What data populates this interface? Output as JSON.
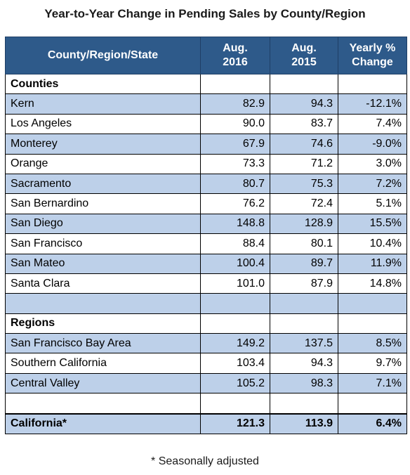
{
  "title": "Year-to-Year Change in Pending Sales by County/Region",
  "footnote": "* Seasonally adjusted",
  "chart_data": {
    "type": "table",
    "title": "Year-to-Year Change in Pending Sales by County/Region",
    "columns": [
      {
        "line1": "County/Region/State",
        "line2": ""
      },
      {
        "line1": "Aug.",
        "line2": "2016"
      },
      {
        "line1": "Aug.",
        "line2": "2015"
      },
      {
        "line1": "Yearly %",
        "line2": "Change"
      }
    ],
    "rows": [
      {
        "kind": "section",
        "label": "Counties",
        "aug2016": "",
        "aug2015": "",
        "change": "",
        "band": false
      },
      {
        "kind": "data",
        "label": "Kern",
        "aug2016": "82.9",
        "aug2015": "94.3",
        "change": "-12.1%",
        "band": true
      },
      {
        "kind": "data",
        "label": "Los Angeles",
        "aug2016": "90.0",
        "aug2015": "83.7",
        "change": "7.4%",
        "band": false
      },
      {
        "kind": "data",
        "label": "Monterey",
        "aug2016": "67.9",
        "aug2015": "74.6",
        "change": "-9.0%",
        "band": true
      },
      {
        "kind": "data",
        "label": "Orange",
        "aug2016": "73.3",
        "aug2015": "71.2",
        "change": "3.0%",
        "band": false
      },
      {
        "kind": "data",
        "label": "Sacramento",
        "aug2016": "80.7",
        "aug2015": "75.3",
        "change": "7.2%",
        "band": true
      },
      {
        "kind": "data",
        "label": "San Bernardino",
        "aug2016": "76.2",
        "aug2015": "72.4",
        "change": "5.1%",
        "band": false
      },
      {
        "kind": "data",
        "label": "San Diego",
        "aug2016": "148.8",
        "aug2015": "128.9",
        "change": "15.5%",
        "band": true
      },
      {
        "kind": "data",
        "label": "San Francisco",
        "aug2016": "88.4",
        "aug2015": "80.1",
        "change": "10.4%",
        "band": false
      },
      {
        "kind": "data",
        "label": "San Mateo",
        "aug2016": "100.4",
        "aug2015": "89.7",
        "change": "11.9%",
        "band": true
      },
      {
        "kind": "data",
        "label": "Santa Clara",
        "aug2016": "101.0",
        "aug2015": "87.9",
        "change": "14.8%",
        "band": false
      },
      {
        "kind": "blank",
        "label": "",
        "aug2016": "",
        "aug2015": "",
        "change": "",
        "band": true
      },
      {
        "kind": "section",
        "label": "Regions",
        "aug2016": "",
        "aug2015": "",
        "change": "",
        "band": false
      },
      {
        "kind": "data",
        "label": "San Francisco Bay Area",
        "aug2016": "149.2",
        "aug2015": "137.5",
        "change": "8.5%",
        "band": true
      },
      {
        "kind": "data",
        "label": "Southern California",
        "aug2016": "103.4",
        "aug2015": "94.3",
        "change": "9.7%",
        "band": false
      },
      {
        "kind": "data",
        "label": "Central Valley",
        "aug2016": "105.2",
        "aug2015": "98.3",
        "change": "7.1%",
        "band": true
      },
      {
        "kind": "blank",
        "label": "",
        "aug2016": "",
        "aug2015": "",
        "change": "",
        "band": false
      },
      {
        "kind": "total",
        "label": "California*",
        "aug2016": "121.3",
        "aug2015": "113.9",
        "change": "6.4%",
        "band": true
      }
    ],
    "colors": {
      "header_bg": "#2e5a8a",
      "header_text": "#ffffff",
      "band": "#bdd0e9"
    }
  }
}
